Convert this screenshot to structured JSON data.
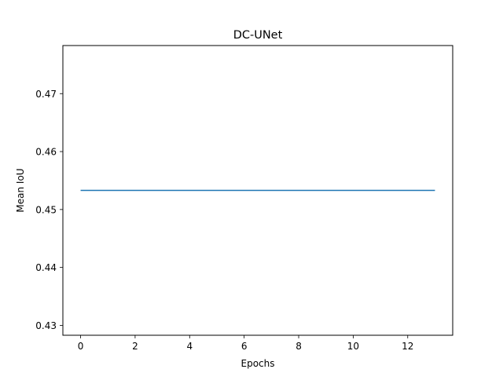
{
  "chart_data": {
    "type": "line",
    "title": "DC-UNet",
    "xlabel": "Epochs",
    "ylabel": "Mean IoU",
    "xlim": [
      -0.65,
      13.65
    ],
    "ylim": [
      0.4283,
      0.4783
    ],
    "xticks": [
      0,
      2,
      4,
      6,
      8,
      10,
      12
    ],
    "xtick_labels": [
      "0",
      "2",
      "4",
      "6",
      "8",
      "10",
      "12"
    ],
    "yticks": [
      0.43,
      0.44,
      0.45,
      0.46,
      0.47
    ],
    "ytick_labels": [
      "0.43",
      "0.44",
      "0.45",
      "0.46",
      "0.47"
    ],
    "grid": false,
    "series": [
      {
        "color": "#1f77b4",
        "x": [
          0,
          1,
          2,
          3,
          4,
          5,
          6,
          7,
          8,
          9,
          10,
          11,
          12,
          13
        ],
        "y": [
          0.4533,
          0.4533,
          0.4533,
          0.4533,
          0.4533,
          0.4533,
          0.4533,
          0.4533,
          0.4533,
          0.4533,
          0.4533,
          0.4533,
          0.4533,
          0.4533
        ]
      }
    ]
  }
}
